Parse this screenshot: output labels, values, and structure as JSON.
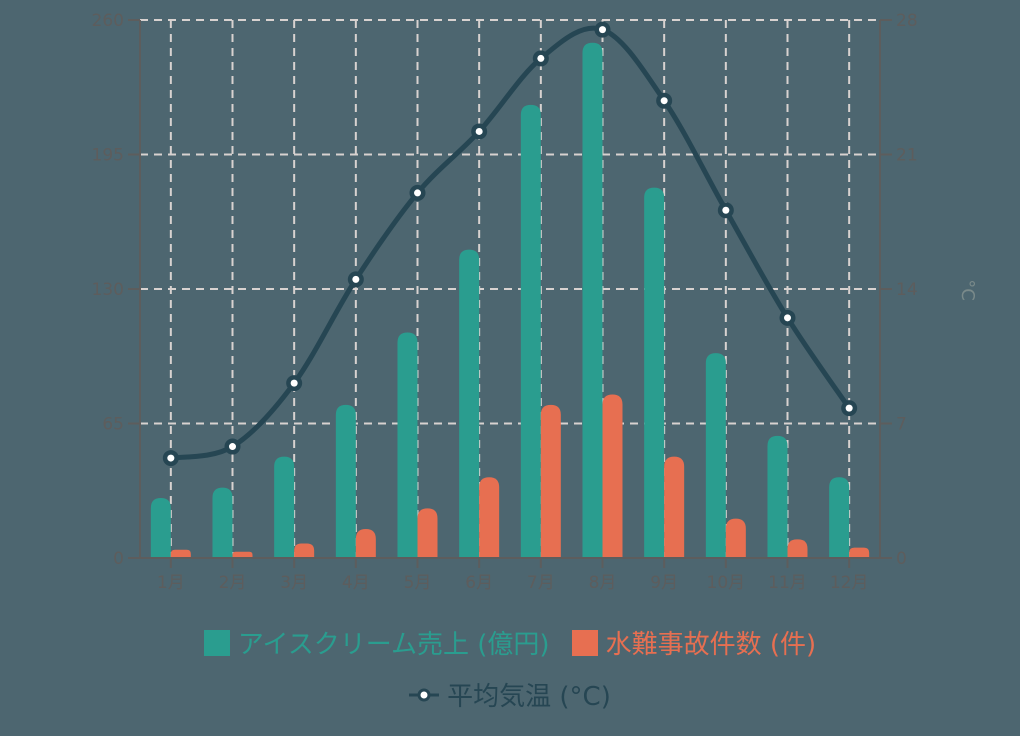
{
  "chart_data": {
    "type": "bar+line",
    "title": "",
    "categories": [
      "1月",
      "2月",
      "3月",
      "4月",
      "5月",
      "6月",
      "7月",
      "8月",
      "9月",
      "10月",
      "11月",
      "12月"
    ],
    "series": [
      {
        "name": "アイスクリーム売上 (億円)",
        "type": "bar",
        "axis": "left",
        "color": "#2a9d8f",
        "values": [
          29,
          34,
          49,
          74,
          109,
          149,
          219,
          249,
          179,
          99,
          59,
          39
        ]
      },
      {
        "name": "水難事故件数 (件)",
        "type": "bar",
        "axis": "left",
        "color": "#e76f51",
        "values": [
          4,
          3,
          7,
          14,
          24,
          39,
          74,
          79,
          49,
          19,
          9,
          5
        ]
      },
      {
        "name": "平均気温 (°C)",
        "type": "line",
        "axis": "right",
        "color": "#264653",
        "values": [
          5.2,
          5.8,
          9.1,
          14.5,
          19.0,
          22.2,
          26.0,
          27.5,
          23.8,
          18.1,
          12.5,
          7.8
        ]
      }
    ],
    "left_axis": {
      "ticks": [
        "0",
        "65",
        "130",
        "195",
        "260"
      ],
      "range": [
        0,
        260
      ],
      "label": ""
    },
    "right_axis": {
      "ticks": [
        "0",
        "7",
        "14",
        "21",
        "28"
      ],
      "range": [
        0,
        28
      ],
      "label": "°C"
    },
    "grid": true,
    "legend_position": "bottom"
  },
  "legend": {
    "ice_cream": "アイスクリーム売上 (億円)",
    "drowning": "水難事故件数 (件)",
    "temperature": "平均気温 (°C)"
  },
  "colors": {
    "background": "#4d6670",
    "ice_cream": "#2a9d8f",
    "drowning": "#e76f51",
    "temperature": "#264653",
    "grid": "#d8d2d0",
    "axis": "#5d5d5d"
  }
}
